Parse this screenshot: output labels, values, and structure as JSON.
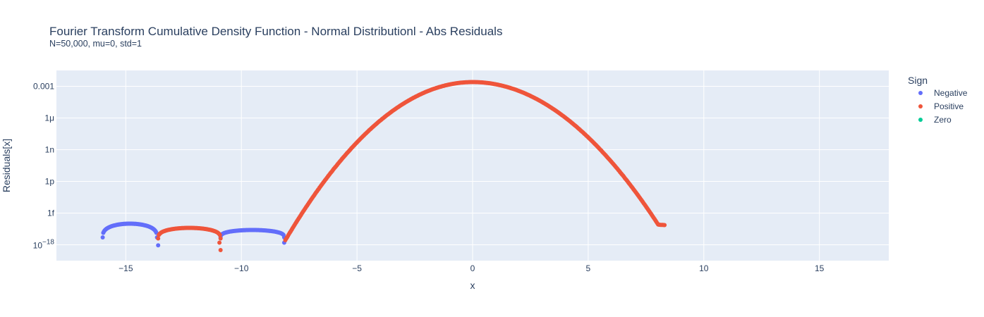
{
  "chart_data": {
    "type": "scatter",
    "title": "Fourier Transform Cumulative Density Function - Normal Distributionl - Abs Residuals",
    "subtitle": "N=50,000, mu=0, std=1",
    "xlabel": "x",
    "ylabel": "Residuals[x]",
    "y_scale": "log",
    "xlim": [
      -18,
      18
    ],
    "ylim_log10": [
      -19.5,
      -1.5
    ],
    "x_ticks": [
      -15,
      -10,
      -5,
      0,
      5,
      10,
      15
    ],
    "x_tick_labels": [
      "−15",
      "−10",
      "−5",
      "0",
      "5",
      "10",
      "15"
    ],
    "y_ticks_log10": [
      -3,
      -6,
      -9,
      -12,
      -15
    ],
    "y_tick_labels": [
      "0.001",
      "1μ",
      "1n",
      "1p",
      "1f"
    ],
    "y_extra_tick": {
      "log10": -18,
      "base": "10",
      "exponent": "−18"
    },
    "grid": true,
    "legend": {
      "title": "Sign",
      "placement": "right",
      "entries": [
        {
          "name": "Negative",
          "color": "#636efa"
        },
        {
          "name": "Positive",
          "color": "#ef553b"
        },
        {
          "name": "Zero",
          "color": "#00cc96"
        }
      ]
    },
    "series": [
      {
        "name": "Negative",
        "color": "#636efa",
        "segments": [
          {
            "x_start": -16.0,
            "x_end": -13.65,
            "log_y_peak": -16.0,
            "log_y_ends": -17.3
          },
          {
            "x_start": -10.9,
            "x_end": -8.15,
            "log_y_peak": -16.6,
            "log_y_ends": -17.3
          }
        ],
        "points": [
          {
            "x": -13.6,
            "log_y": -18.05
          },
          {
            "x": -8.15,
            "log_y": -17.8
          }
        ]
      },
      {
        "name": "Positive",
        "color": "#ef553b",
        "segments": [
          {
            "x_start": -13.6,
            "x_end": -10.9,
            "log_y_peak": -16.4,
            "log_y_ends": -17.4
          }
        ],
        "curve": {
          "x_start": -8.1,
          "x_end": 8.3,
          "log_y_at_zero": -2.6,
          "log_y_at_-8": -17.2,
          "log_y_at_8": -16.0
        },
        "points": [
          {
            "x": -10.9,
            "log_y": -18.5
          },
          {
            "x": -10.95,
            "log_y": -17.8
          }
        ]
      },
      {
        "name": "Zero",
        "color": "#00cc96",
        "points": []
      }
    ]
  }
}
